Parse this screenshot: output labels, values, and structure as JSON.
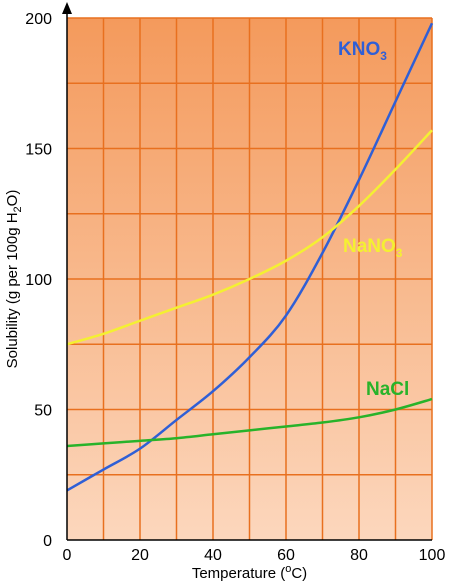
{
  "chart_data": {
    "type": "line",
    "title": "",
    "xlabel": {
      "prefix": "Temperature (",
      "sup": "o",
      "suffix": "C)"
    },
    "ylabel": {
      "prefix": "Solubility (g per 100g H",
      "sub": "2",
      "suffix": "O)"
    },
    "xlim": [
      0,
      100
    ],
    "ylim": [
      0,
      200
    ],
    "x_ticks": [
      "0",
      "20",
      "40",
      "60",
      "80",
      "100"
    ],
    "y_ticks": [
      "0",
      "50",
      "100",
      "150",
      "200"
    ],
    "grid": true,
    "background_gradient": [
      "#f49a5c",
      "#fcd7bd"
    ],
    "grid_color": "#e8701f",
    "series": [
      {
        "name": "KNO",
        "name_sub": "3",
        "color": "#2f5fd6",
        "label_color": "#2f5fd6",
        "x": [
          0,
          10,
          20,
          30,
          40,
          50,
          60,
          70,
          80,
          90,
          100
        ],
        "y": [
          19,
          27,
          35,
          46,
          57,
          70,
          86,
          110,
          138,
          168,
          198
        ]
      },
      {
        "name": "NaNO",
        "name_sub": "3",
        "color": "#f4f032",
        "label_color": "#f4f032",
        "x": [
          0,
          10,
          20,
          30,
          40,
          50,
          60,
          70,
          80,
          90,
          100
        ],
        "y": [
          75,
          79,
          84,
          89,
          94,
          100,
          107,
          116,
          128,
          142,
          157
        ]
      },
      {
        "name": "NaCl",
        "name_sub": "",
        "color": "#28b32a",
        "label_color": "#28b32a",
        "x": [
          0,
          10,
          20,
          30,
          40,
          50,
          60,
          70,
          80,
          90,
          100
        ],
        "y": [
          36,
          37,
          38,
          39,
          40.5,
          42,
          43.5,
          45,
          47,
          50,
          54
        ]
      }
    ]
  }
}
